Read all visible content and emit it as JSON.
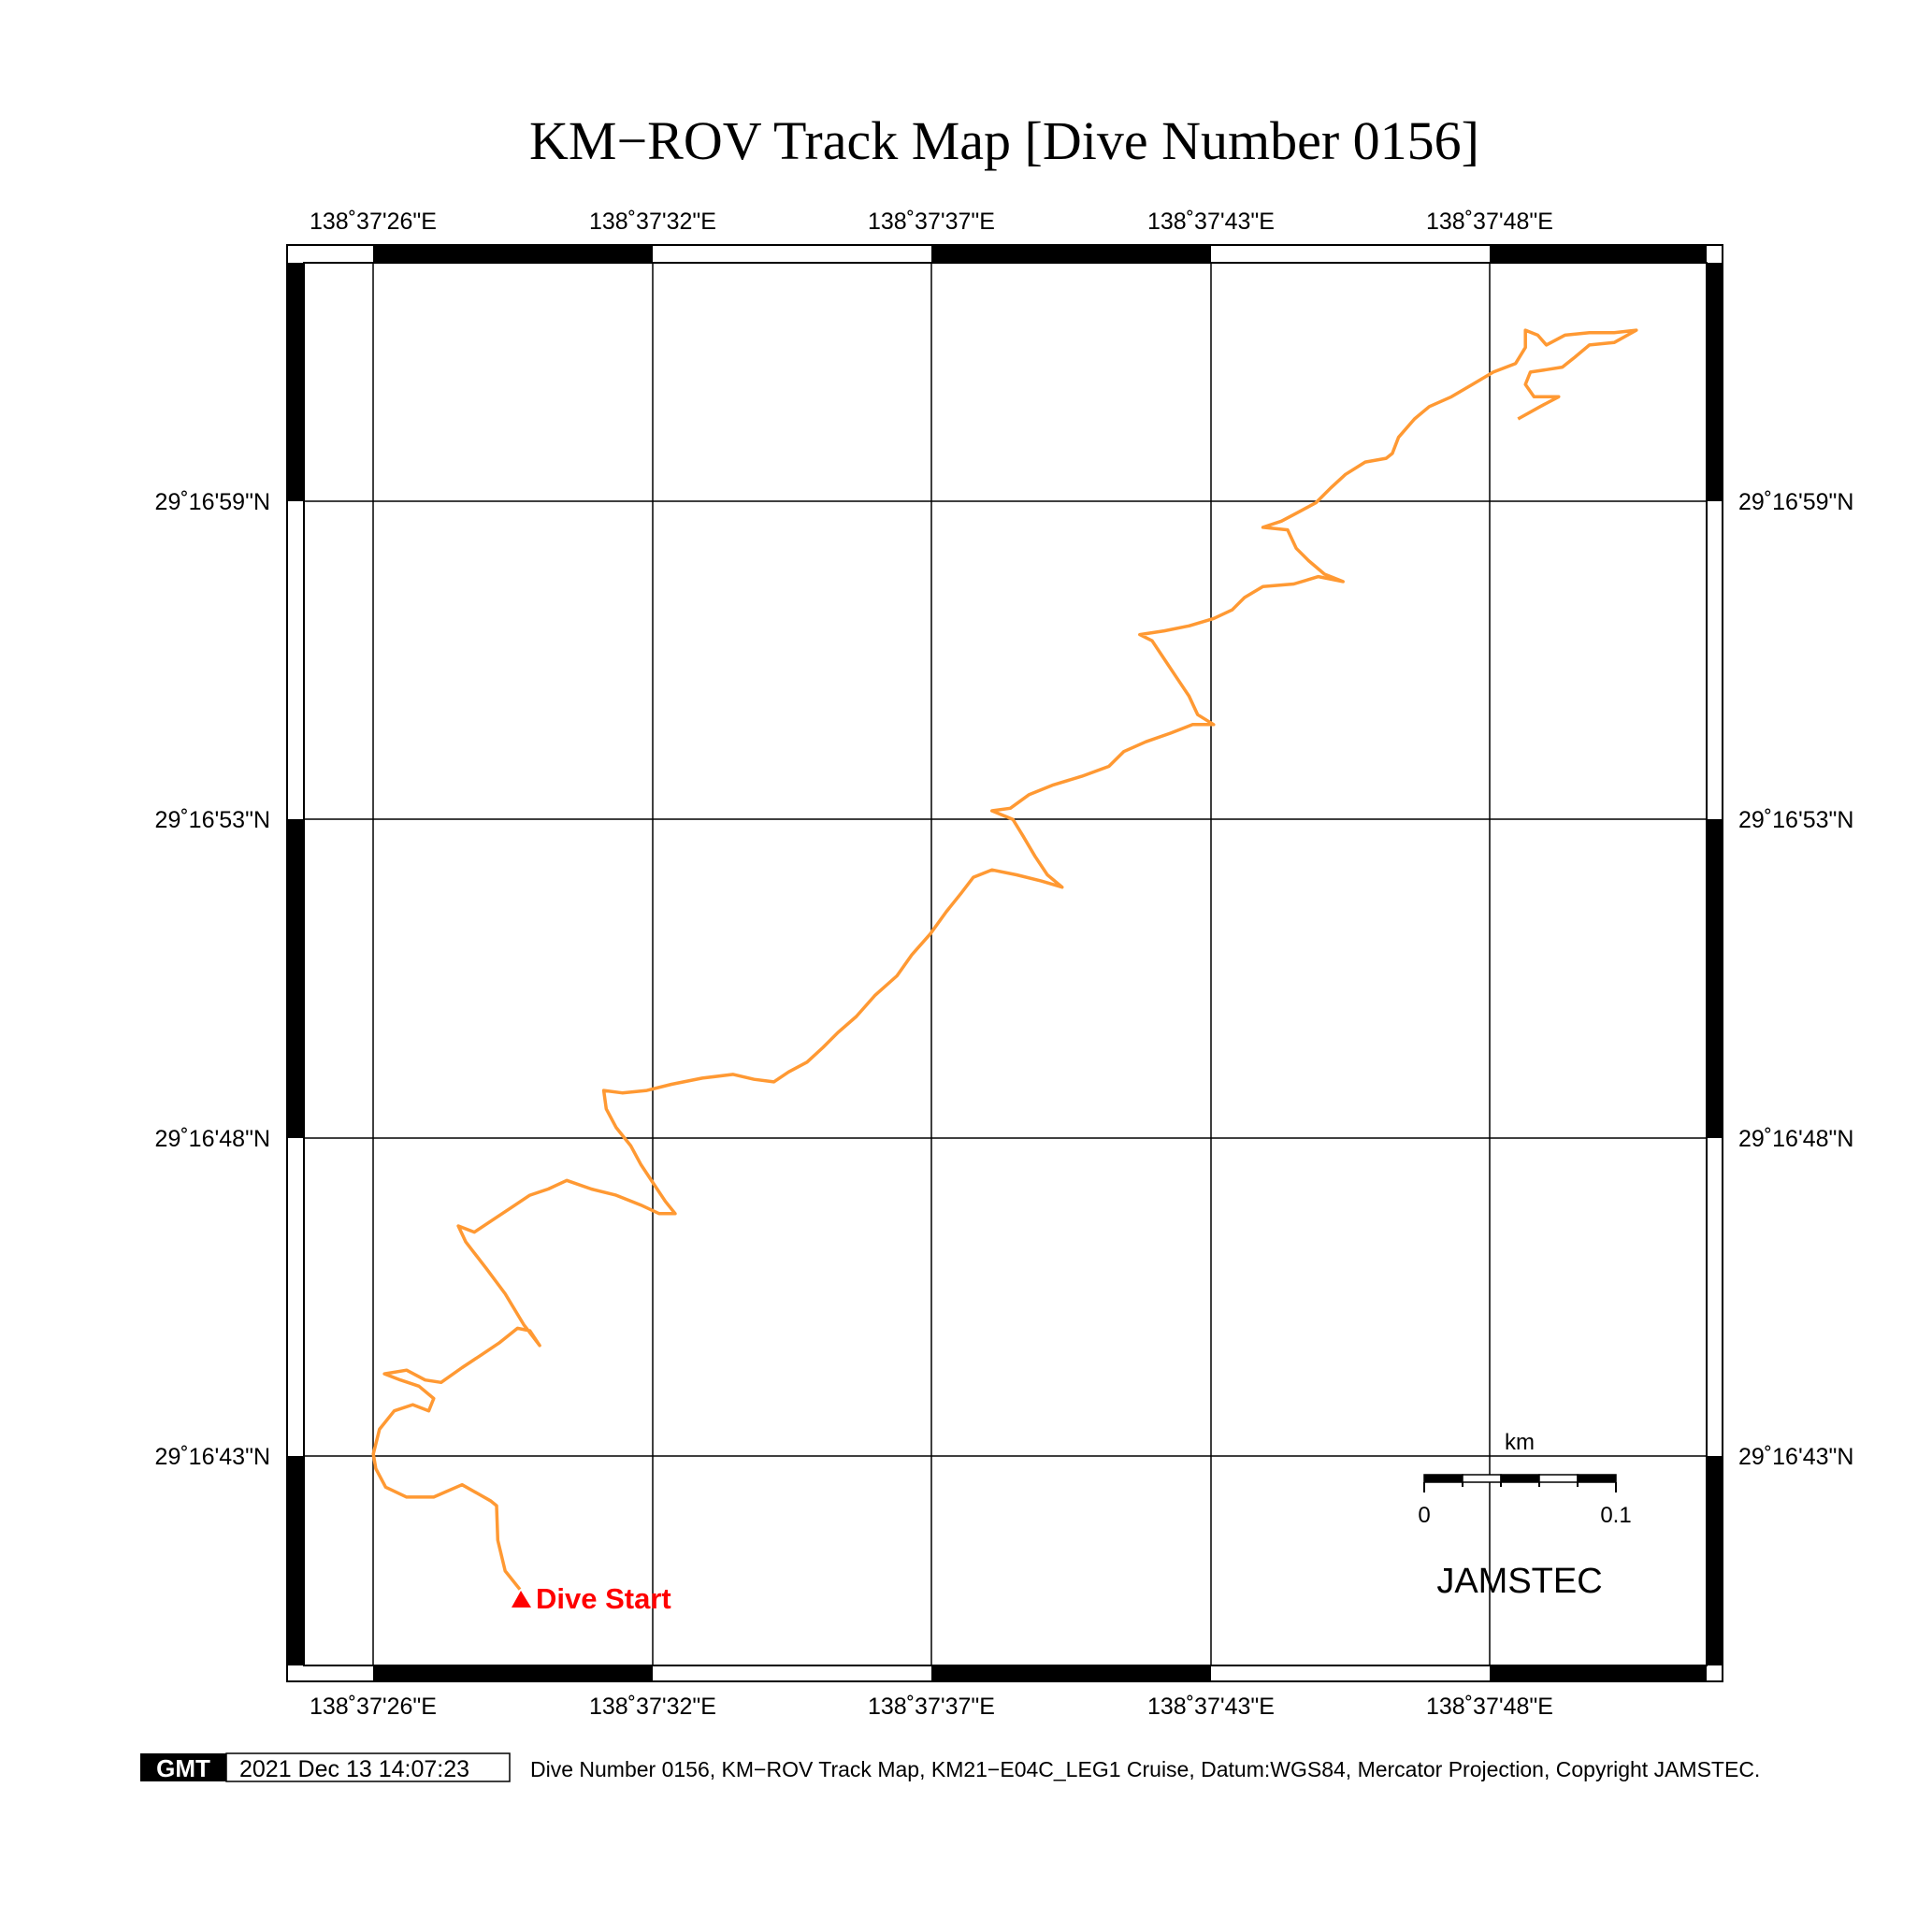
{
  "title": "KM−ROV Track Map [Dive Number 0156]",
  "lon_labels": [
    "138˚37'26\"E",
    "138˚37'32\"E",
    "138˚37'37\"E",
    "138˚37'43\"E",
    "138˚37'48\"E"
  ],
  "lat_labels": [
    "29˚16'59\"N",
    "29˚16'53\"N",
    "29˚16'48\"N",
    "29˚16'43\"N"
  ],
  "track": {
    "color": "#ff9933",
    "start_label": "Dive Start",
    "start_color": "#ff0000"
  },
  "scale_bar": {
    "unit": "km",
    "min_label": "0",
    "max_label": "0.1"
  },
  "watermark": "JAMSTEC",
  "footer": {
    "logo": "GMT",
    "timestamp": "2021 Dec 13 14:07:23",
    "caption": "Dive Number 0156, KM−ROV Track Map, KM21−E04C_LEG1 Cruise, Datum:WGS84, Mercator Projection, Copyright JAMSTEC."
  }
}
